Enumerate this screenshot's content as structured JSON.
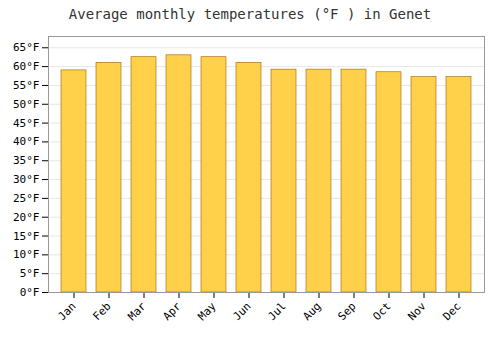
{
  "chart_data": {
    "type": "bar",
    "title": "Average monthly temperatures (°F ) in Genet",
    "categories": [
      "Jan",
      "Feb",
      "Mar",
      "Apr",
      "May",
      "Jun",
      "Jul",
      "Aug",
      "Sep",
      "Oct",
      "Nov",
      "Dec"
    ],
    "values": [
      59,
      61,
      62.5,
      63,
      62.5,
      61,
      59.2,
      59.2,
      59.2,
      58.5,
      57.2,
      57.2
    ],
    "color": "#FFD04A",
    "ylim": [
      0,
      68
    ],
    "yticks": [
      {
        "value": 0,
        "label": "0°F"
      },
      {
        "value": 5,
        "label": "5°F"
      },
      {
        "value": 10,
        "label": "10°F"
      },
      {
        "value": 15,
        "label": "15°F"
      },
      {
        "value": 20,
        "label": "20°F"
      },
      {
        "value": 25,
        "label": "25°F"
      },
      {
        "value": 30,
        "label": "30°F"
      },
      {
        "value": 35,
        "label": "35°F"
      },
      {
        "value": 40,
        "label": "40°F"
      },
      {
        "value": 45,
        "label": "45°F"
      },
      {
        "value": 50,
        "label": "50°F"
      },
      {
        "value": 55,
        "label": "55°F"
      },
      {
        "value": 60,
        "label": "60°F"
      },
      {
        "value": 65,
        "label": "65°F"
      }
    ],
    "grid": true
  }
}
